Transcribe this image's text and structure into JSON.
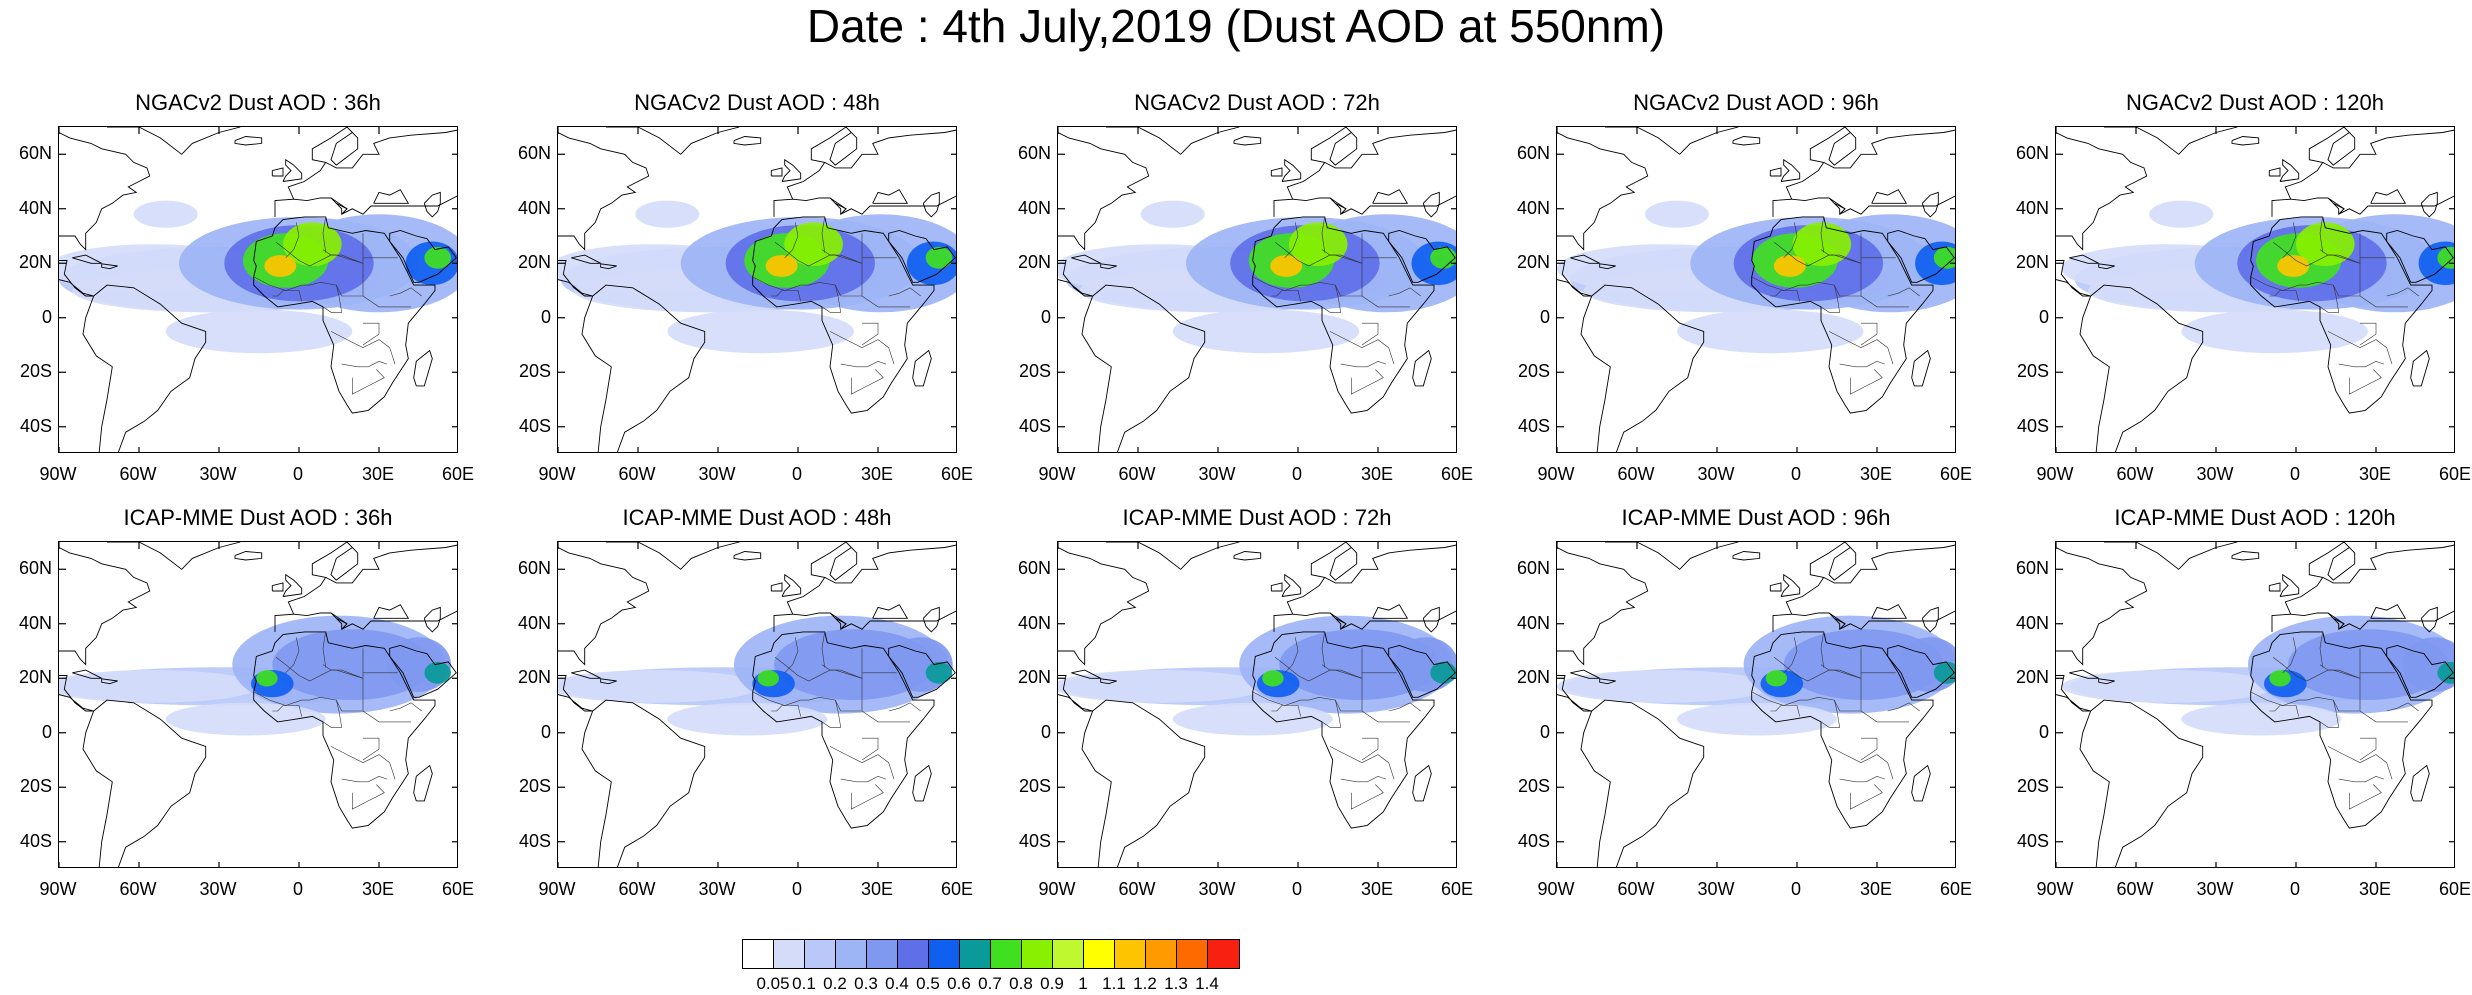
{
  "title": "Date : 4th July,2019 (Dust AOD at 550nm)",
  "panels": [
    {
      "title": "NGACv2 Dust AOD : 36h",
      "model": "ngac",
      "lead": 36
    },
    {
      "title": "NGACv2 Dust AOD : 48h",
      "model": "ngac",
      "lead": 48
    },
    {
      "title": "NGACv2 Dust AOD : 72h",
      "model": "ngac",
      "lead": 72
    },
    {
      "title": "NGACv2 Dust AOD : 96h",
      "model": "ngac",
      "lead": 96
    },
    {
      "title": "NGACv2 Dust AOD : 120h",
      "model": "ngac",
      "lead": 120
    },
    {
      "title": "ICAP-MME Dust AOD : 36h",
      "model": "icap",
      "lead": 36
    },
    {
      "title": "ICAP-MME Dust AOD : 48h",
      "model": "icap",
      "lead": 48
    },
    {
      "title": "ICAP-MME Dust AOD : 72h",
      "model": "icap",
      "lead": 72
    },
    {
      "title": "ICAP-MME Dust AOD : 96h",
      "model": "icap",
      "lead": 96
    },
    {
      "title": "ICAP-MME Dust AOD : 120h",
      "model": "icap",
      "lead": 120
    }
  ],
  "lat_ticks": [
    "60N",
    "40N",
    "20N",
    "0",
    "20S",
    "40S"
  ],
  "lon_ticks": [
    "90W",
    "60W",
    "30W",
    "0",
    "30E",
    "60E"
  ],
  "map_extent": {
    "lon": [
      -90,
      60
    ],
    "lat": [
      -50,
      70
    ]
  },
  "colorbar": {
    "labels": [
      "0.05",
      "0.1",
      "0.2",
      "0.3",
      "0.4",
      "0.5",
      "0.6",
      "0.7",
      "0.8",
      "0.9",
      "1",
      "1.1",
      "1.2",
      "1.3",
      "1.4"
    ],
    "colors": [
      "#ffffff",
      "#d4dcfa",
      "#b9c8f8",
      "#9db4f5",
      "#8099f0",
      "#5f6fe8",
      "#1060f0",
      "#0a9a9a",
      "#40e020",
      "#88f000",
      "#c0f830",
      "#ffff00",
      "#ffc400",
      "#ff9a00",
      "#ff6a00",
      "#f82010"
    ]
  }
}
